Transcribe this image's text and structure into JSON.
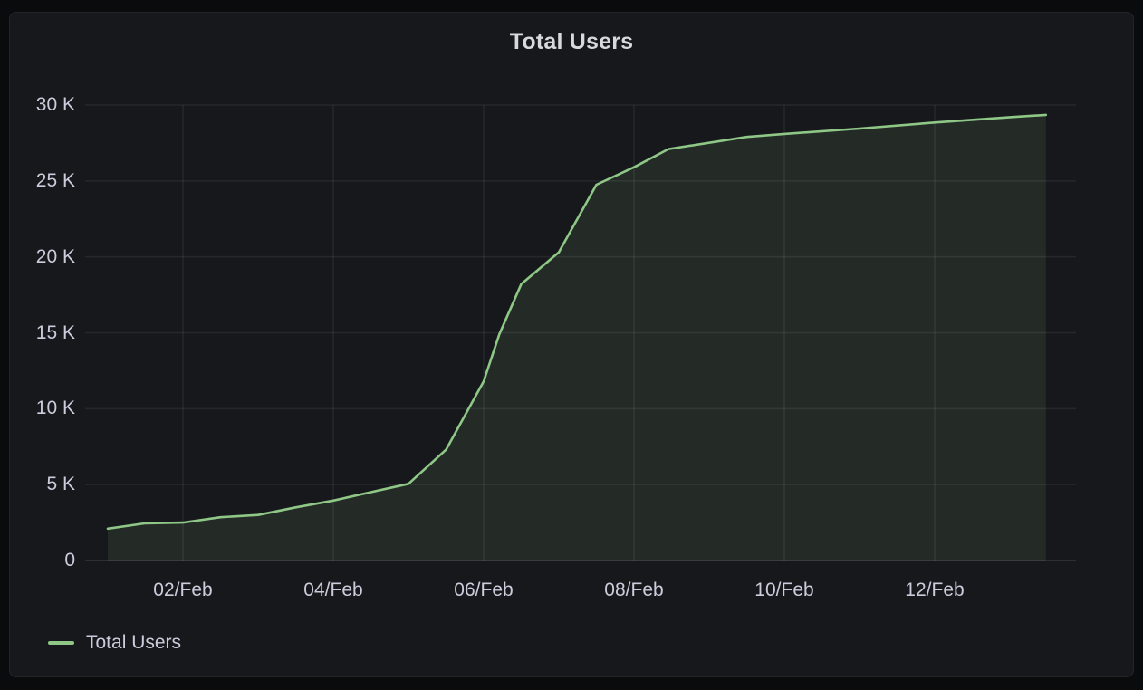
{
  "panel": {
    "title": "Total Users"
  },
  "legend": {
    "label": "Total Users"
  },
  "colors": {
    "background": "#0a0b0d",
    "panel_background": "#17181c",
    "series_green": "#8ec786",
    "series_fill_opacity": 0.11,
    "grid": "rgba(204,204,220,0.09)",
    "axis_line": "rgba(204,204,220,0.16)",
    "tick_text": "#ccccdc",
    "title_text": "#d8d9da"
  },
  "chart_data": {
    "type": "area",
    "title": "Total Users",
    "grid": true,
    "legend_position": "bottom-left",
    "x_axis": {
      "type": "time",
      "tick_labels": [
        "02/Feb",
        "04/Feb",
        "06/Feb",
        "08/Feb",
        "10/Feb",
        "12/Feb"
      ],
      "tick_interval_days": 2,
      "range_start": "01/Feb 00:00",
      "range_end": "13/Feb 12:00"
    },
    "y_axis": {
      "min": 0,
      "max": 30000,
      "tick_step": 5000,
      "tick_labels": [
        "30 K",
        "25 K",
        "20 K",
        "15 K",
        "10 K",
        "5 K",
        "0"
      ]
    },
    "series": [
      {
        "name": "Total Users",
        "color": "#8ec786",
        "points": [
          {
            "t": "01/Feb 00:00",
            "users": 2100
          },
          {
            "t": "01/Feb 12:00",
            "users": 2450
          },
          {
            "t": "02/Feb 00:00",
            "users": 2500
          },
          {
            "t": "02/Feb 12:00",
            "users": 2850
          },
          {
            "t": "03/Feb 00:00",
            "users": 3000
          },
          {
            "t": "03/Feb 12:00",
            "users": 3500
          },
          {
            "t": "04/Feb 00:00",
            "users": 3950
          },
          {
            "t": "04/Feb 12:00",
            "users": 4500
          },
          {
            "t": "05/Feb 00:00",
            "users": 5050
          },
          {
            "t": "05/Feb 12:00",
            "users": 7300
          },
          {
            "t": "06/Feb 00:00",
            "users": 11800
          },
          {
            "t": "06/Feb 05:00",
            "users": 14900
          },
          {
            "t": "06/Feb 12:00",
            "users": 18200
          },
          {
            "t": "07/Feb 00:00",
            "users": 20300
          },
          {
            "t": "07/Feb 12:00",
            "users": 24750
          },
          {
            "t": "08/Feb 00:00",
            "users": 25900
          },
          {
            "t": "08/Feb 11:00",
            "users": 27100
          },
          {
            "t": "09/Feb 12:00",
            "users": 27900
          },
          {
            "t": "10/Feb 00:00",
            "users": 28100
          },
          {
            "t": "11/Feb 00:00",
            "users": 28450
          },
          {
            "t": "12/Feb 00:00",
            "users": 28850
          },
          {
            "t": "13/Feb 00:00",
            "users": 29200
          },
          {
            "t": "13/Feb 11:30",
            "users": 29350
          }
        ]
      }
    ]
  }
}
